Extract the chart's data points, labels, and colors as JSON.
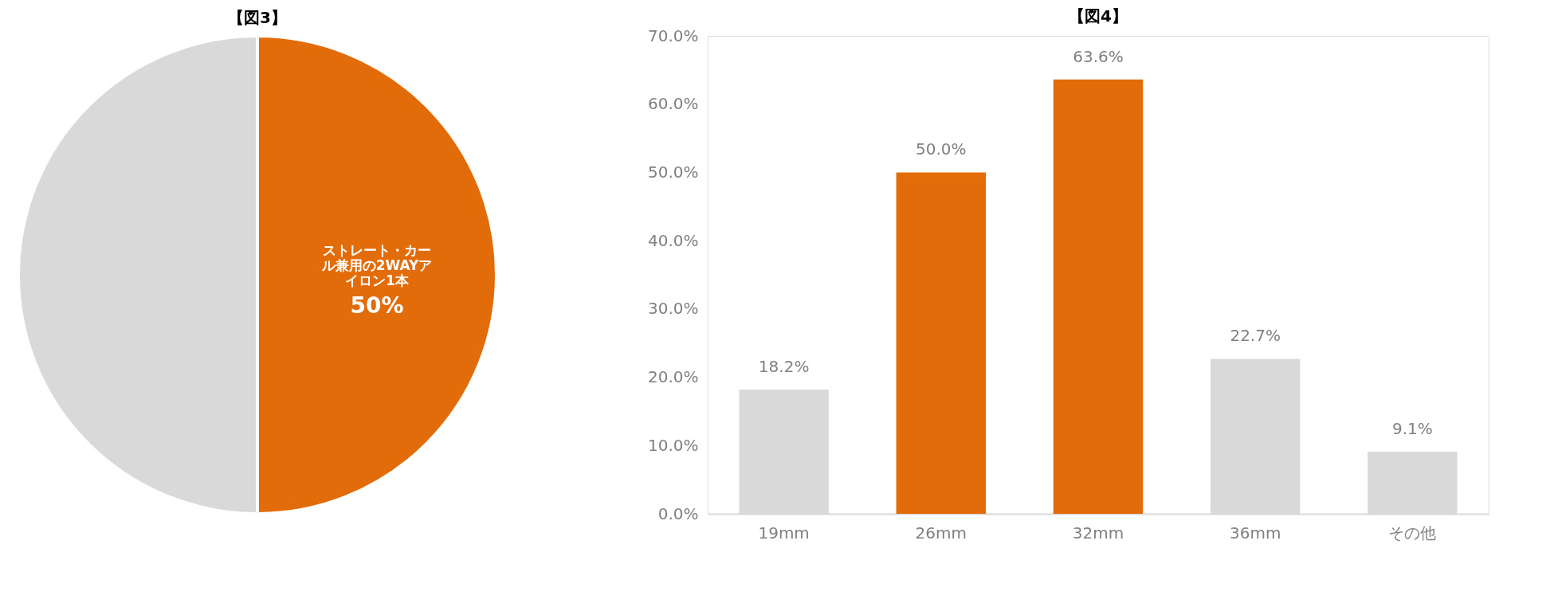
{
  "chart_data": [
    {
      "type": "pie",
      "title": "【図3】",
      "categories": [
        "ストレート・カール兼用の2WAYアイロン1本",
        null
      ],
      "values": [
        50,
        50
      ],
      "colors": [
        "#e36c0a",
        "#d9d9d9"
      ],
      "value_labels": [
        "50%",
        null
      ]
    },
    {
      "type": "bar",
      "title": "【図4】",
      "categories": [
        "19mm",
        "26mm",
        "32mm",
        "36mm",
        "その他"
      ],
      "values": [
        18.2,
        50.0,
        63.6,
        22.7,
        9.1
      ],
      "colors": [
        "#d9d9d9",
        "#e36c0a",
        "#e36c0a",
        "#d9d9d9",
        "#d9d9d9"
      ],
      "value_labels": [
        "18.2%",
        "50.0%",
        "63.6%",
        "22.7%",
        "9.1%"
      ],
      "ylim": [
        0,
        70
      ],
      "yticks": [
        {
          "value": 0,
          "label": "0.0%"
        },
        {
          "value": 10,
          "label": "10.0%"
        },
        {
          "value": 20,
          "label": "20.0%"
        },
        {
          "value": 30,
          "label": "30.0%"
        },
        {
          "value": 40,
          "label": "40.0%"
        },
        {
          "value": 50,
          "label": "50.0%"
        },
        {
          "value": 60,
          "label": "60.0%"
        },
        {
          "value": 70,
          "label": "70.0%"
        }
      ],
      "grid": false
    }
  ]
}
